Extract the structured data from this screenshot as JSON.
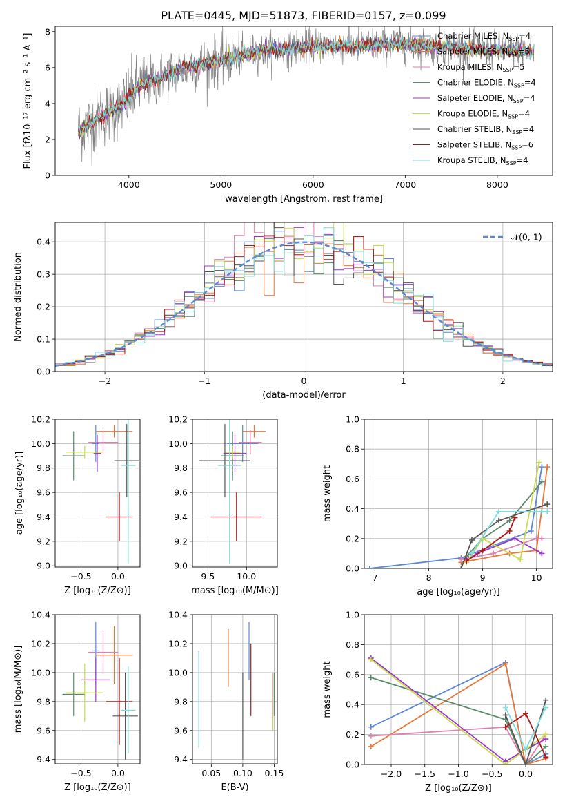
{
  "figure": {
    "title": "PLATE=0445, MJD=51873, FIBERID=0157, z=0.099"
  },
  "colors": {
    "Chabrier MILES": "#5b87d6",
    "Salpeter MILES": "#e8773a",
    "Kroupa MILES": "#e27fb0",
    "Chabrier ELODIE": "#5a8a6a",
    "Salpeter ELODIE": "#9a38c8",
    "Kroupa ELODIE": "#c9d94a",
    "Chabrier STELIB": "#555555",
    "Salpeter STELIB": "#b01818",
    "Kroupa STELIB": "#7fdcdc"
  },
  "chart_data": [
    {
      "id": "spectrum",
      "type": "line",
      "title": "PLATE=0445, MJD=51873, FIBERID=0157, z=0.099",
      "xlabel": "wavelength [Angstrom, rest frame]",
      "ylabel": "Flux [fλ10⁻¹⁷ erg cm⁻² s⁻¹ A⁻¹]",
      "xlim": [
        3200,
        8600
      ],
      "ylim": [
        0,
        8.3
      ],
      "xticks": [
        4000,
        5000,
        6000,
        7000,
        8000
      ],
      "yticks": [
        0,
        2,
        4,
        6,
        8
      ],
      "data_color": "#808080",
      "continuum": [
        [
          3450,
          2.5
        ],
        [
          3600,
          2.9
        ],
        [
          3700,
          3.3
        ],
        [
          3800,
          3.6
        ],
        [
          3900,
          3.8
        ],
        [
          4000,
          4.4
        ],
        [
          4100,
          4.9
        ],
        [
          4200,
          5.2
        ],
        [
          4300,
          5.3
        ],
        [
          4400,
          5.6
        ],
        [
          4500,
          5.8
        ],
        [
          4600,
          6.0
        ],
        [
          4700,
          6.1
        ],
        [
          4800,
          6.2
        ],
        [
          4900,
          6.3
        ],
        [
          5000,
          6.4
        ],
        [
          5200,
          6.6
        ],
        [
          5400,
          6.9
        ],
        [
          5600,
          7.0
        ],
        [
          5800,
          7.1
        ],
        [
          6000,
          7.2
        ],
        [
          6200,
          7.2
        ],
        [
          6400,
          7.2
        ],
        [
          6600,
          7.25
        ],
        [
          6800,
          7.3
        ],
        [
          7000,
          7.3
        ],
        [
          7200,
          7.25
        ],
        [
          7400,
          7.15
        ],
        [
          7600,
          7.1
        ],
        [
          7800,
          7.0
        ],
        [
          8000,
          7.0
        ],
        [
          8200,
          6.95
        ],
        [
          8400,
          6.9
        ]
      ],
      "legend": [
        "Chabrier MILES, N_SSP=4",
        "Salpeter MILES, N_SSP=5",
        "Kroupa MILES, N_SSP=5",
        "Chabrier ELODIE, N_SSP=4",
        "Salpeter ELODIE, N_SSP=4",
        "Kroupa ELODIE, N_SSP=4",
        "Chabrier STELIB, N_SSP=4",
        "Salpeter STELIB, N_SSP=6",
        "Kroupa STELIB, N_SSP=4"
      ]
    },
    {
      "id": "residuals",
      "type": "line",
      "xlabel": "(data-model)/error",
      "ylabel": "Normed distribution",
      "xlim": [
        -2.5,
        2.5
      ],
      "ylim": [
        0,
        0.46
      ],
      "xticks": [
        -2,
        -1,
        0,
        1,
        2
      ],
      "yticks": [
        0.0,
        0.1,
        0.2,
        0.3,
        0.4
      ],
      "legend": "𝒩(0, 1)",
      "normal_color": "#5b87d6"
    },
    {
      "id": "age-vs-Z",
      "type": "scatter",
      "xlabel": "Z [log₁₀(Z/Z⊙)]",
      "ylabel": "age  [log₁₀(age/yr)]",
      "xlim": [
        -0.85,
        0.3
      ],
      "ylim": [
        8.99,
        10.2
      ],
      "xticks": [
        -0.5,
        0.0
      ],
      "yticks": [
        9.0,
        9.2,
        9.4,
        9.6,
        9.8,
        10.0,
        10.2
      ],
      "points": [
        {
          "model": "Chabrier MILES",
          "x": -0.3,
          "y": 10.0,
          "xe": 0.05,
          "ye": 0.15
        },
        {
          "model": "Salpeter MILES",
          "x": -0.05,
          "y": 10.1,
          "xe": 0.25,
          "ye": 0.05
        },
        {
          "model": "Kroupa MILES",
          "x": -0.2,
          "y": 10.01,
          "xe": 0.2,
          "ye": 0.1
        },
        {
          "model": "Chabrier ELODIE",
          "x": -0.6,
          "y": 9.9,
          "xe": 0.15,
          "ye": 0.2
        },
        {
          "model": "Salpeter ELODIE",
          "x": -0.28,
          "y": 9.92,
          "xe": 0.05,
          "ye": 0.15
        },
        {
          "model": "Kroupa ELODIE",
          "x": -0.45,
          "y": 9.93,
          "xe": 0.25,
          "ye": 0.05
        },
        {
          "model": "Chabrier STELIB",
          "x": 0.12,
          "y": 9.86,
          "xe": 0.17,
          "ye": 0.3
        },
        {
          "model": "Salpeter STELIB",
          "x": 0.02,
          "y": 9.4,
          "xe": 0.18,
          "ye": 0.2
        },
        {
          "model": "Kroupa STELIB",
          "x": 0.14,
          "y": 9.82,
          "xe": 0.1,
          "ye": 0.8
        }
      ]
    },
    {
      "id": "age-vs-mass",
      "type": "scatter",
      "xlabel": "mass [log₁₀(M/M⊙)]",
      "ylabel": "",
      "xlim": [
        9.3,
        10.4
      ],
      "ylim": [
        8.99,
        10.2
      ],
      "xticks": [
        9.5,
        10.0
      ],
      "yticks": [
        9.0,
        9.2,
        9.4,
        9.6,
        9.8,
        10.0,
        10.2
      ],
      "points": [
        {
          "model": "Chabrier MILES",
          "x": 9.95,
          "y": 10.0,
          "xe": 0.2,
          "ye": 0.15
        },
        {
          "model": "Salpeter MILES",
          "x": 10.1,
          "y": 10.1,
          "xe": 0.15,
          "ye": 0.05
        },
        {
          "model": "Kroupa MILES",
          "x": 10.05,
          "y": 10.01,
          "xe": 0.15,
          "ye": 0.1
        },
        {
          "model": "Chabrier ELODIE",
          "x": 9.82,
          "y": 9.9,
          "xe": 0.15,
          "ye": 0.2
        },
        {
          "model": "Salpeter ELODIE",
          "x": 9.85,
          "y": 9.92,
          "xe": 0.15,
          "ye": 0.15
        },
        {
          "model": "Kroupa ELODIE",
          "x": 9.82,
          "y": 9.93,
          "xe": 0.1,
          "ye": 0.05
        },
        {
          "model": "Chabrier STELIB",
          "x": 9.72,
          "y": 9.86,
          "xe": 0.33,
          "ye": 0.3
        },
        {
          "model": "Salpeter STELIB",
          "x": 9.87,
          "y": 9.4,
          "xe": 0.33,
          "ye": 0.2
        },
        {
          "model": "Kroupa STELIB",
          "x": 9.78,
          "y": 9.82,
          "xe": 0.15,
          "ye": 0.8
        }
      ]
    },
    {
      "id": "mass-weight-vs-age",
      "type": "line",
      "xlabel": "age  [log₁₀(age/yr)]",
      "ylabel": "mass weight",
      "xlim": [
        6.8,
        10.3
      ],
      "ylim": [
        0,
        1.0
      ],
      "xticks": [
        7,
        8,
        9,
        10
      ],
      "yticks": [
        0.0,
        0.2,
        0.4,
        0.6,
        0.8,
        1.0
      ],
      "series": [
        {
          "model": "Chabrier MILES",
          "points": [
            [
              6.9,
              0.0
            ],
            [
              8.6,
              0.07
            ],
            [
              9.9,
              0.25
            ],
            [
              10.1,
              0.68
            ]
          ]
        },
        {
          "model": "Salpeter MILES",
          "points": [
            [
              8.6,
              0.04
            ],
            [
              9.5,
              0.1
            ],
            [
              10.0,
              0.12
            ],
            [
              10.2,
              0.68
            ]
          ]
        },
        {
          "model": "Kroupa MILES",
          "points": [
            [
              8.6,
              0.06
            ],
            [
              9.2,
              0.1
            ],
            [
              10.0,
              0.2
            ],
            [
              10.1,
              0.2
            ]
          ]
        },
        {
          "model": "Chabrier ELODIE",
          "points": [
            [
              8.7,
              0.08
            ],
            [
              9.0,
              0.2
            ],
            [
              9.5,
              0.32
            ],
            [
              10.1,
              0.58
            ]
          ]
        },
        {
          "model": "Salpeter ELODIE",
          "points": [
            [
              8.7,
              0.06
            ],
            [
              8.9,
              0.1
            ],
            [
              9.6,
              0.2
            ],
            [
              10.1,
              0.1
            ]
          ]
        },
        {
          "model": "Kroupa ELODIE",
          "points": [
            [
              8.7,
              0.04
            ],
            [
              9.0,
              0.2
            ],
            [
              9.7,
              0.06
            ],
            [
              10.05,
              0.71
            ]
          ]
        },
        {
          "model": "Chabrier STELIB",
          "points": [
            [
              8.6,
              0.0
            ],
            [
              8.8,
              0.19
            ],
            [
              9.3,
              0.32
            ],
            [
              10.2,
              0.43
            ]
          ]
        },
        {
          "model": "Salpeter STELIB",
          "points": [
            [
              8.7,
              0.05
            ],
            [
              9.0,
              0.12
            ],
            [
              9.5,
              0.25
            ],
            [
              9.6,
              0.34
            ]
          ]
        },
        {
          "model": "Kroupa STELIB",
          "points": [
            [
              8.8,
              0.1
            ],
            [
              9.3,
              0.38
            ],
            [
              10.1,
              0.38
            ],
            [
              10.2,
              0.38
            ]
          ]
        }
      ]
    },
    {
      "id": "mass-vs-Z",
      "type": "scatter",
      "xlabel": "Z [log₁₀(Z/Z⊙)]",
      "ylabel": "mass [log₁₀(M/M⊙)]",
      "xlim": [
        -0.85,
        0.3
      ],
      "ylim": [
        9.37,
        10.4
      ],
      "xticks": [
        -0.5,
        0.0
      ],
      "yticks": [
        9.4,
        9.6,
        9.8,
        10.0,
        10.2,
        10.4
      ],
      "points": [
        {
          "model": "Chabrier MILES",
          "x": -0.3,
          "y": 10.15,
          "xe": 0.05,
          "ye": 0.2
        },
        {
          "model": "Salpeter MILES",
          "x": -0.05,
          "y": 10.12,
          "xe": 0.25,
          "ye": 0.2
        },
        {
          "model": "Kroupa MILES",
          "x": -0.2,
          "y": 10.14,
          "xe": 0.2,
          "ye": 0.15
        },
        {
          "model": "Chabrier ELODIE",
          "x": -0.6,
          "y": 9.85,
          "xe": 0.15,
          "ye": 0.15
        },
        {
          "model": "Salpeter ELODIE",
          "x": -0.3,
          "y": 9.95,
          "xe": 0.2,
          "ye": 0.15
        },
        {
          "model": "Kroupa ELODIE",
          "x": -0.45,
          "y": 9.86,
          "xe": 0.25,
          "ye": 0.2
        },
        {
          "model": "Chabrier STELIB",
          "x": 0.1,
          "y": 9.7,
          "xe": 0.17,
          "ye": 0.3
        },
        {
          "model": "Salpeter STELIB",
          "x": 0.02,
          "y": 9.8,
          "xe": 0.18,
          "ye": 0.3
        },
        {
          "model": "Kroupa STELIB",
          "x": 0.14,
          "y": 9.74,
          "xe": 0.1,
          "ye": 0.3
        }
      ]
    },
    {
      "id": "mass-vs-ebv",
      "type": "scatter",
      "xlabel": "E(B-V)",
      "ylabel": "",
      "xlim": [
        0.02,
        0.155
      ],
      "ylim": [
        9.37,
        10.4
      ],
      "xticks": [
        0.05,
        0.1,
        0.15
      ],
      "yticks": [
        9.4,
        9.6,
        9.8,
        10.0,
        10.2,
        10.4
      ],
      "points": [
        {
          "model": "Chabrier MILES",
          "x": 0.11,
          "y": 10.15,
          "xe": 0,
          "ye": 0.2
        },
        {
          "model": "Salpeter MILES",
          "x": 0.077,
          "y": 10.1,
          "xe": 0,
          "ye": 0.2
        },
        {
          "model": "Kroupa MILES",
          "x": 0.03,
          "y": 9.85,
          "xe": 0,
          "ye": 0.3
        },
        {
          "model": "Chabrier ELODIE",
          "x": 0.15,
          "y": 9.85,
          "xe": 0,
          "ye": 0.15
        },
        {
          "model": "Salpeter ELODIE",
          "x": 0.147,
          "y": 9.85,
          "xe": 0,
          "ye": 0.15
        },
        {
          "model": "Kroupa ELODIE",
          "x": 0.148,
          "y": 9.8,
          "xe": 0,
          "ye": 0.2
        },
        {
          "model": "Chabrier STELIB",
          "x": 0.1,
          "y": 9.7,
          "xe": 0,
          "ye": 0.3
        },
        {
          "model": "Salpeter STELIB",
          "x": 0.113,
          "y": 9.95,
          "xe": 0,
          "ye": 0.25
        },
        {
          "model": "Kroupa STELIB",
          "x": 0.03,
          "y": 9.81,
          "xe": 0,
          "ye": 0.33
        }
      ]
    },
    {
      "id": "mass-weight-vs-Z",
      "type": "line",
      "xlabel": "Z [log₁₀(Z/Z⊙)]",
      "ylabel": "mass weight",
      "xlim": [
        -2.4,
        0.4
      ],
      "ylim": [
        0,
        1.0
      ],
      "xticks": [
        -2.0,
        -1.5,
        -1.0,
        -0.5,
        0.0
      ],
      "yticks": [
        0.0,
        0.2,
        0.4,
        0.6,
        0.8,
        1.0
      ],
      "series": [
        {
          "model": "Chabrier MILES",
          "points": [
            [
              -2.3,
              0.25
            ],
            [
              -0.3,
              0.68
            ],
            [
              0.0,
              0.0
            ],
            [
              0.3,
              0.07
            ]
          ]
        },
        {
          "model": "Salpeter MILES",
          "points": [
            [
              -2.3,
              0.12
            ],
            [
              -0.3,
              0.67
            ],
            [
              0.0,
              0.0
            ],
            [
              0.3,
              0.04
            ]
          ]
        },
        {
          "model": "Kroupa MILES",
          "points": [
            [
              -2.3,
              0.19
            ],
            [
              -0.3,
              0.25
            ],
            [
              0.0,
              0.0
            ],
            [
              0.3,
              0.2
            ]
          ]
        },
        {
          "model": "Chabrier ELODIE",
          "points": [
            [
              -2.3,
              0.58
            ],
            [
              -0.3,
              0.3
            ],
            [
              0.0,
              0.0
            ],
            [
              0.3,
              0.12
            ]
          ]
        },
        {
          "model": "Salpeter ELODIE",
          "points": [
            [
              -2.3,
              0.71
            ],
            [
              -0.3,
              0.02
            ],
            [
              0.0,
              0.1
            ],
            [
              0.3,
              0.17
            ]
          ]
        },
        {
          "model": "Kroupa ELODIE",
          "points": [
            [
              -2.3,
              0.7
            ],
            [
              -0.3,
              0.0
            ],
            [
              0.0,
              0.1
            ],
            [
              0.3,
              0.2
            ]
          ]
        },
        {
          "model": "Chabrier STELIB",
          "points": [
            [
              -0.3,
              0.33
            ],
            [
              0.0,
              0.0
            ],
            [
              0.3,
              0.43
            ]
          ]
        },
        {
          "model": "Salpeter STELIB",
          "points": [
            [
              -0.3,
              0.25
            ],
            [
              0.0,
              0.34
            ],
            [
              0.3,
              0.05
            ]
          ]
        },
        {
          "model": "Kroupa STELIB",
          "points": [
            [
              -0.3,
              0.38
            ],
            [
              0.0,
              0.1
            ],
            [
              0.3,
              0.38
            ]
          ]
        }
      ]
    }
  ]
}
